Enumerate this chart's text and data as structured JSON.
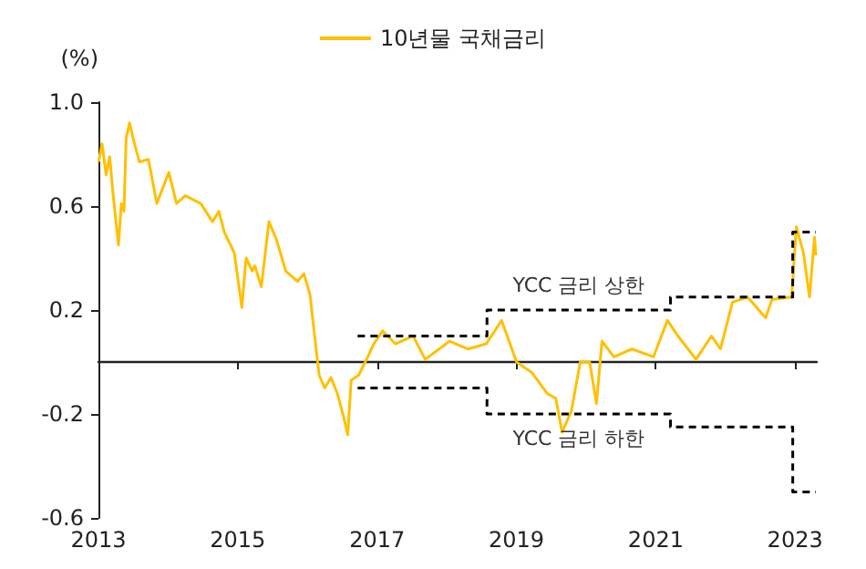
{
  "chart_data": {
    "type": "line",
    "ylabel": "(%)",
    "legend": "top",
    "marker": "none",
    "grid": false,
    "xlim": [
      "2013-01-01",
      "2023-04-25"
    ],
    "xticks": [
      "2013",
      "2015",
      "2017",
      "2019",
      "2021",
      "2023"
    ],
    "ylim": [
      -0.6,
      1.0
    ],
    "yticks": [
      -0.6,
      -0.2,
      0.2,
      0.6,
      {
        "value": 1,
        "label": "1.0"
      }
    ],
    "series": [
      {
        "name": "10년물 국채금리",
        "color": "#ffc000",
        "line_style": "solid",
        "x": [
          "2013-01-02",
          "2013-01-20",
          "2013-02-10",
          "2013-03-01",
          "2013-03-18",
          "2013-04-16",
          "2013-05-01",
          "2013-05-15",
          "2013-05-26",
          "2013-06-13",
          "2013-07-09",
          "2013-08-04",
          "2013-09-20",
          "2013-11-03",
          "2014-01-05",
          "2014-02-14",
          "2014-04-01",
          "2014-06-21",
          "2014-08-22",
          "2014-09-24",
          "2014-10-23",
          "2014-12-14",
          "2015-01-23",
          "2015-02-14",
          "2015-03-18",
          "2015-04-01",
          "2015-05-05",
          "2015-06-14",
          "2015-07-24",
          "2015-09-10",
          "2015-11-11",
          "2015-12-14",
          "2016-01-15",
          "2016-02-10",
          "2016-03-03",
          "2016-04-01",
          "2016-05-04",
          "2016-06-06",
          "2016-07-09",
          "2016-07-31",
          "2016-08-18",
          "2016-09-27",
          "2016-11-13",
          "2016-12-14",
          "2017-01-30",
          "2017-04-06",
          "2017-07-09",
          "2017-09-10",
          "2018-01-15",
          "2018-04-23",
          "2018-07-27",
          "2018-10-16",
          "2019-01-02",
          "2019-03-23",
          "2019-06-10",
          "2019-07-27",
          "2019-08-29",
          "2019-10-16",
          "2019-12-02",
          "2020-01-20",
          "2020-02-25",
          "2020-03-25",
          "2020-05-26",
          "2020-08-29",
          "2020-12-20",
          "2021-03-03",
          "2021-04-27",
          "2021-07-31",
          "2021-10-20",
          "2021-12-06",
          "2022-02-07",
          "2022-04-27",
          "2022-07-31",
          "2022-09-02",
          "2022-12-14",
          "2023-01-08",
          "2023-02-14",
          "2023-03-18",
          "2023-04-13",
          "2023-04-20"
        ],
        "values": [
          0.77,
          0.84,
          0.72,
          0.79,
          0.65,
          0.45,
          0.61,
          0.58,
          0.86,
          0.92,
          0.84,
          0.77,
          0.78,
          0.61,
          0.73,
          0.61,
          0.64,
          0.61,
          0.54,
          0.58,
          0.5,
          0.42,
          0.21,
          0.4,
          0.35,
          0.37,
          0.29,
          0.54,
          0.47,
          0.35,
          0.31,
          0.34,
          0.26,
          0.09,
          -0.05,
          -0.1,
          -0.06,
          -0.12,
          -0.21,
          -0.28,
          -0.07,
          -0.05,
          0.02,
          0.07,
          0.12,
          0.07,
          0.1,
          0.01,
          0.08,
          0.05,
          0.07,
          0.16,
          0.0,
          -0.04,
          -0.12,
          -0.14,
          -0.27,
          -0.19,
          0.0,
          0.0,
          -0.16,
          0.08,
          0.02,
          0.05,
          0.02,
          0.16,
          0.1,
          0.01,
          0.1,
          0.05,
          0.23,
          0.25,
          0.17,
          0.24,
          0.25,
          0.52,
          0.42,
          0.25,
          0.48,
          0.41
        ]
      },
      {
        "name": "YCC 금리 상한",
        "type": "step",
        "color": "#000000",
        "line_style": "dashed",
        "x": [
          "2016-09-21",
          "2018-07-31",
          "2021-03-19",
          "2022-12-20",
          "2023-04-20"
        ],
        "values": [
          0.1,
          0.2,
          0.25,
          0.5,
          0.5
        ]
      },
      {
        "name": "YCC 금리 하한",
        "type": "step",
        "color": "#000000",
        "line_style": "dashed",
        "x": [
          "2016-09-21",
          "2018-07-31",
          "2021-03-19",
          "2022-12-20",
          "2023-04-20"
        ],
        "values": [
          -0.1,
          -0.2,
          -0.25,
          -0.5,
          -0.5
        ]
      }
    ]
  }
}
